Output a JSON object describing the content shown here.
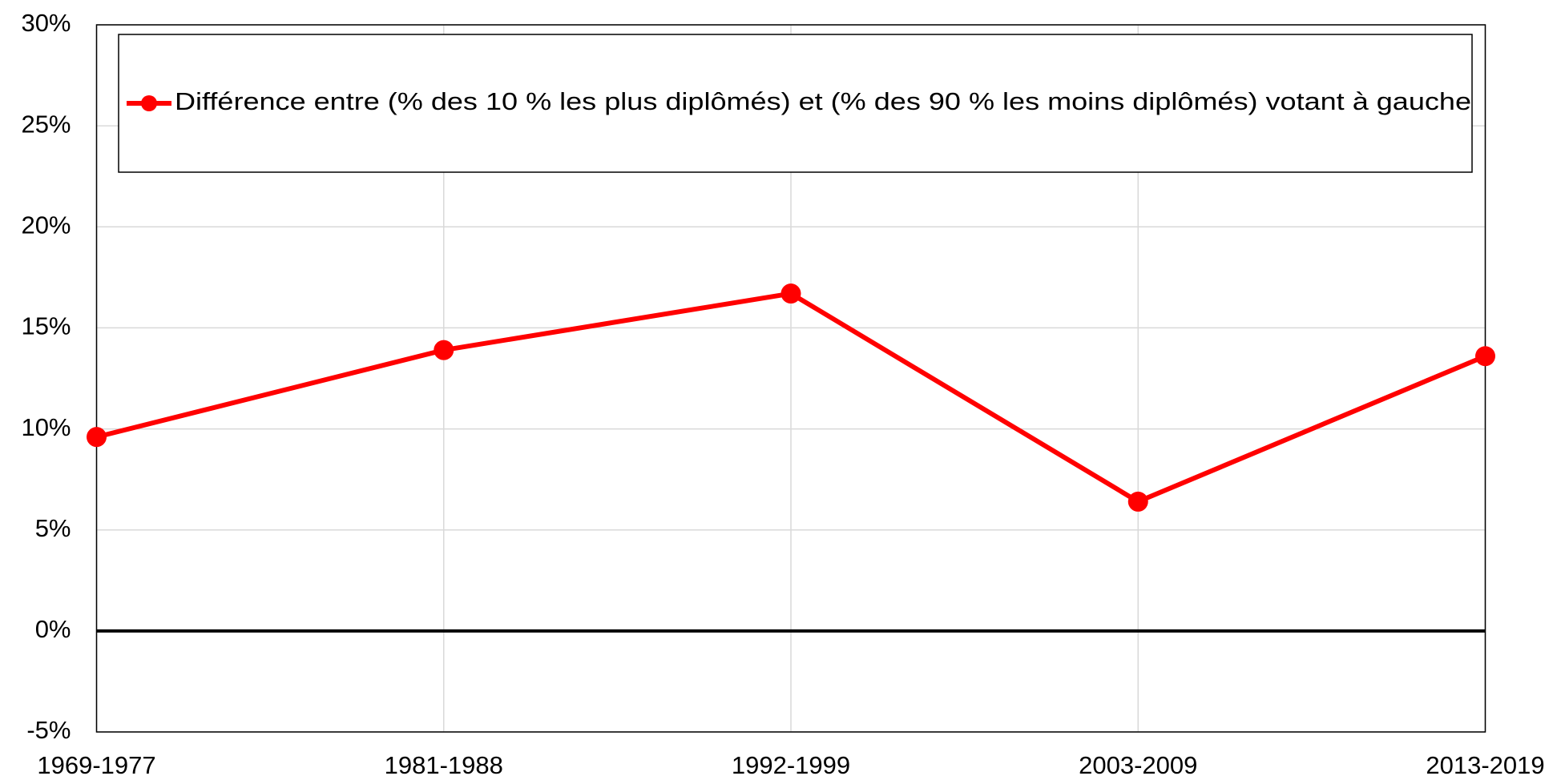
{
  "chart_data": {
    "type": "line",
    "categories": [
      "1969-1977",
      "1981-1988",
      "1992-1999",
      "2003-2009",
      "2013-2019"
    ],
    "series": [
      {
        "name": "Différence entre (% des 10 % les plus diplômés) et (% des 90 % les moins diplômés) votant à gauche",
        "color": "#ff0000",
        "values": [
          9.6,
          13.9,
          16.7,
          6.4,
          13.6
        ]
      }
    ],
    "ylim": [
      -5,
      30
    ],
    "yticks": [
      {
        "value": -5,
        "label": "-5%"
      },
      {
        "value": 0,
        "label": "0%"
      },
      {
        "value": 5,
        "label": "5%"
      },
      {
        "value": 10,
        "label": "10%"
      },
      {
        "value": 15,
        "label": "15%"
      },
      {
        "value": 20,
        "label": "20%"
      },
      {
        "value": 25,
        "label": "25%"
      },
      {
        "value": 30,
        "label": "30%"
      }
    ],
    "grid": true,
    "legend": "top"
  }
}
